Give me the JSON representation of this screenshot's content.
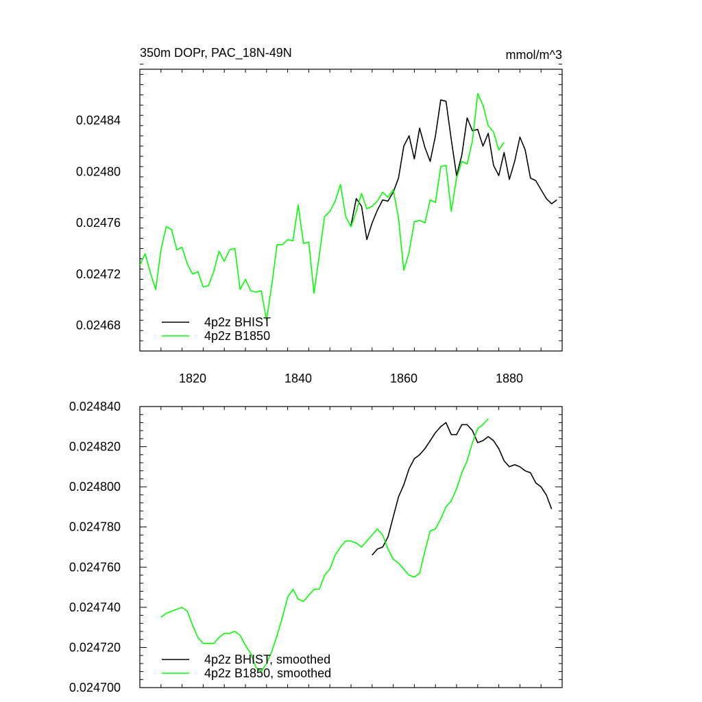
{
  "colors": {
    "bhist": "#000000",
    "b1850": "#00ff00"
  },
  "chart_data": [
    {
      "type": "line",
      "title": "350m DOPr, PAC_18N-49N",
      "units": "mmol/m^3",
      "xlim": [
        1810,
        1890
      ],
      "ylim": [
        0.02466,
        0.02488
      ],
      "xticks": [
        1820,
        1840,
        1860,
        1880
      ],
      "xtick_labels": [
        "1820",
        "1840",
        "1860",
        "1880"
      ],
      "yticks": [
        0.02468,
        0.02472,
        0.02476,
        0.0248,
        0.02484
      ],
      "ytick_labels": [
        "0.02468",
        "0.02472",
        "0.02476",
        "0.02480",
        "0.02484"
      ],
      "legend_position": "bottom-left",
      "series": [
        {
          "name": "4p2z BHIST",
          "color": "#000000",
          "points": [
            [
              1850,
              0.024758
            ],
            [
              1851,
              0.024779
            ],
            [
              1852,
              0.024773
            ],
            [
              1853,
              0.024747
            ],
            [
              1854,
              0.02476
            ],
            [
              1855,
              0.02477
            ],
            [
              1856,
              0.024778
            ],
            [
              1857,
              0.024777
            ],
            [
              1858,
              0.024784
            ],
            [
              1859,
              0.024795
            ],
            [
              1860,
              0.02482
            ],
            [
              1861,
              0.024828
            ],
            [
              1862,
              0.02481
            ],
            [
              1863,
              0.024834
            ],
            [
              1864,
              0.024819
            ],
            [
              1865,
              0.024808
            ],
            [
              1866,
              0.024828
            ],
            [
              1867,
              0.024856
            ],
            [
              1868,
              0.024855
            ],
            [
              1869,
              0.024825
            ],
            [
              1870,
              0.024797
            ],
            [
              1871,
              0.024813
            ],
            [
              1872,
              0.024842
            ],
            [
              1873,
              0.024832
            ],
            [
              1874,
              0.024833
            ],
            [
              1875,
              0.02482
            ],
            [
              1876,
              0.02483
            ],
            [
              1877,
              0.024805
            ],
            [
              1878,
              0.024797
            ],
            [
              1879,
              0.024815
            ],
            [
              1880,
              0.024794
            ],
            [
              1881,
              0.024808
            ],
            [
              1882,
              0.024827
            ],
            [
              1883,
              0.024817
            ],
            [
              1884,
              0.024795
            ],
            [
              1885,
              0.024793
            ],
            [
              1886,
              0.024786
            ],
            [
              1887,
              0.024779
            ],
            [
              1888,
              0.024775
            ],
            [
              1889,
              0.024778
            ]
          ]
        },
        {
          "name": "4p2z B1850",
          "color": "#00ff00",
          "points": [
            [
              1810,
              0.024727
            ],
            [
              1811,
              0.024736
            ],
            [
              1812,
              0.024721
            ],
            [
              1813,
              0.024708
            ],
            [
              1814,
              0.024739
            ],
            [
              1815,
              0.024757
            ],
            [
              1816,
              0.024755
            ],
            [
              1817,
              0.024739
            ],
            [
              1818,
              0.024741
            ],
            [
              1819,
              0.024728
            ],
            [
              1820,
              0.02472
            ],
            [
              1821,
              0.024722
            ],
            [
              1822,
              0.02471
            ],
            [
              1823,
              0.024711
            ],
            [
              1824,
              0.024722
            ],
            [
              1825,
              0.024738
            ],
            [
              1826,
              0.02473
            ],
            [
              1827,
              0.024739
            ],
            [
              1828,
              0.02474
            ],
            [
              1829,
              0.024708
            ],
            [
              1830,
              0.024716
            ],
            [
              1831,
              0.024707
            ],
            [
              1832,
              0.024706
            ],
            [
              1833,
              0.024707
            ],
            [
              1834,
              0.024684
            ],
            [
              1835,
              0.024712
            ],
            [
              1836,
              0.024743
            ],
            [
              1837,
              0.024743
            ],
            [
              1838,
              0.024747
            ],
            [
              1839,
              0.024746
            ],
            [
              1840,
              0.024774
            ],
            [
              1841,
              0.024744
            ],
            [
              1842,
              0.024745
            ],
            [
              1843,
              0.024705
            ],
            [
              1844,
              0.024735
            ],
            [
              1845,
              0.024765
            ],
            [
              1846,
              0.024769
            ],
            [
              1847,
              0.024777
            ],
            [
              1848,
              0.02479
            ],
            [
              1849,
              0.024765
            ],
            [
              1850,
              0.024757
            ],
            [
              1851,
              0.024769
            ],
            [
              1852,
              0.024783
            ],
            [
              1853,
              0.024771
            ],
            [
              1854,
              0.024773
            ],
            [
              1855,
              0.024777
            ],
            [
              1856,
              0.024784
            ],
            [
              1857,
              0.02478
            ],
            [
              1858,
              0.024786
            ],
            [
              1859,
              0.024764
            ],
            [
              1860,
              0.024723
            ],
            [
              1861,
              0.024737
            ],
            [
              1862,
              0.024761
            ],
            [
              1863,
              0.024762
            ],
            [
              1864,
              0.02476
            ],
            [
              1865,
              0.024778
            ],
            [
              1866,
              0.024776
            ],
            [
              1867,
              0.024804
            ],
            [
              1868,
              0.024805
            ],
            [
              1869,
              0.024769
            ],
            [
              1870,
              0.024795
            ],
            [
              1871,
              0.024808
            ],
            [
              1872,
              0.024806
            ],
            [
              1873,
              0.024824
            ],
            [
              1874,
              0.024861
            ],
            [
              1875,
              0.024852
            ],
            [
              1876,
              0.024836
            ],
            [
              1877,
              0.024831
            ],
            [
              1878,
              0.024817
            ],
            [
              1879,
              0.024823
            ]
          ]
        }
      ]
    },
    {
      "type": "line",
      "title": "",
      "xlim": [
        1810,
        1890
      ],
      "ylim": [
        0.0247,
        0.02484
      ],
      "xticks": [
        1820,
        1840,
        1860,
        1880
      ],
      "yticks": [
        0.0247,
        0.02472,
        0.02474,
        0.02476,
        0.02478,
        0.0248,
        0.02482,
        0.02484
      ],
      "ytick_labels": [
        "0.024700",
        "0.024720",
        "0.024740",
        "0.024760",
        "0.024780",
        "0.024800",
        "0.024820",
        "0.024840"
      ],
      "legend_position": "bottom-left",
      "series": [
        {
          "name": "4p2z BHIST, smoothed",
          "color": "#000000",
          "points": [
            [
              1854,
              0.024766
            ],
            [
              1855,
              0.024769
            ],
            [
              1856,
              0.02477
            ],
            [
              1857,
              0.024775
            ],
            [
              1858,
              0.024785
            ],
            [
              1859,
              0.024795
            ],
            [
              1860,
              0.024801
            ],
            [
              1861,
              0.024809
            ],
            [
              1862,
              0.024814
            ],
            [
              1863,
              0.024816
            ],
            [
              1864,
              0.024819
            ],
            [
              1865,
              0.024823
            ],
            [
              1866,
              0.024827
            ],
            [
              1867,
              0.02483
            ],
            [
              1868,
              0.024832
            ],
            [
              1869,
              0.024826
            ],
            [
              1870,
              0.024826
            ],
            [
              1871,
              0.024831
            ],
            [
              1872,
              0.024831
            ],
            [
              1873,
              0.024828
            ],
            [
              1874,
              0.024822
            ],
            [
              1875,
              0.024823
            ],
            [
              1876,
              0.024825
            ],
            [
              1877,
              0.024823
            ],
            [
              1878,
              0.024819
            ],
            [
              1879,
              0.024813
            ],
            [
              1880,
              0.02481
            ],
            [
              1881,
              0.024811
            ],
            [
              1882,
              0.02481
            ],
            [
              1883,
              0.024808
            ],
            [
              1884,
              0.024807
            ],
            [
              1885,
              0.024802
            ],
            [
              1886,
              0.0248
            ],
            [
              1887,
              0.024796
            ],
            [
              1888,
              0.024789
            ]
          ]
        },
        {
          "name": "4p2z B1850, smoothed",
          "color": "#00ff00",
          "points": [
            [
              1814,
              0.024735
            ],
            [
              1815,
              0.024737
            ],
            [
              1816,
              0.024738
            ],
            [
              1817,
              0.024739
            ],
            [
              1818,
              0.02474
            ],
            [
              1819,
              0.024738
            ],
            [
              1820,
              0.024731
            ],
            [
              1821,
              0.024725
            ],
            [
              1822,
              0.024722
            ],
            [
              1823,
              0.024722
            ],
            [
              1824,
              0.024722
            ],
            [
              1825,
              0.024725
            ],
            [
              1826,
              0.024727
            ],
            [
              1827,
              0.024727
            ],
            [
              1828,
              0.024728
            ],
            [
              1829,
              0.024726
            ],
            [
              1830,
              0.024721
            ],
            [
              1831,
              0.024717
            ],
            [
              1832,
              0.02471
            ],
            [
              1833,
              0.024708
            ],
            [
              1834,
              0.024712
            ],
            [
              1835,
              0.024718
            ],
            [
              1836,
              0.024726
            ],
            [
              1837,
              0.024735
            ],
            [
              1838,
              0.024745
            ],
            [
              1839,
              0.024749
            ],
            [
              1840,
              0.024744
            ],
            [
              1841,
              0.024743
            ],
            [
              1842,
              0.024746
            ],
            [
              1843,
              0.024749
            ],
            [
              1844,
              0.024749
            ],
            [
              1845,
              0.024756
            ],
            [
              1846,
              0.024759
            ],
            [
              1847,
              0.024766
            ],
            [
              1848,
              0.02477
            ],
            [
              1849,
              0.024773
            ],
            [
              1850,
              0.024773
            ],
            [
              1851,
              0.024772
            ],
            [
              1852,
              0.02477
            ],
            [
              1853,
              0.024773
            ],
            [
              1854,
              0.024776
            ],
            [
              1855,
              0.024779
            ],
            [
              1856,
              0.024776
            ],
            [
              1857,
              0.024769
            ],
            [
              1858,
              0.024764
            ],
            [
              1859,
              0.024762
            ],
            [
              1860,
              0.024759
            ],
            [
              1861,
              0.024756
            ],
            [
              1862,
              0.024755
            ],
            [
              1863,
              0.024757
            ],
            [
              1864,
              0.024768
            ],
            [
              1865,
              0.024778
            ],
            [
              1866,
              0.024779
            ],
            [
              1867,
              0.024784
            ],
            [
              1868,
              0.02479
            ],
            [
              1869,
              0.024793
            ],
            [
              1870,
              0.024799
            ],
            [
              1871,
              0.024807
            ],
            [
              1872,
              0.024813
            ],
            [
              1873,
              0.024822
            ],
            [
              1874,
              0.024829
            ],
            [
              1875,
              0.024831
            ],
            [
              1876,
              0.024834
            ]
          ]
        }
      ]
    }
  ]
}
